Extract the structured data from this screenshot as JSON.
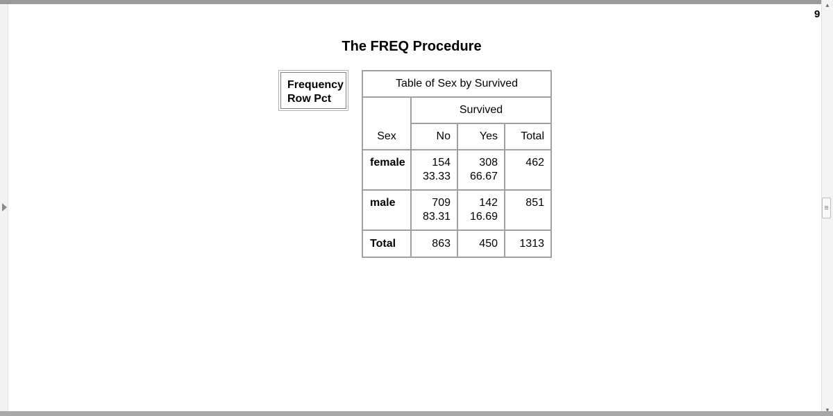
{
  "page_number": "9",
  "procedure_title": "The FREQ Procedure",
  "key": {
    "line1": "Frequency",
    "line2": "Row Pct"
  },
  "table": {
    "title": "Table of Sex by Survived",
    "row_variable": "Sex",
    "column_variable": "Survived",
    "column_headers": [
      "No",
      "Yes",
      "Total"
    ],
    "rows": [
      {
        "label": "female",
        "cells": [
          {
            "freq": "154",
            "row_pct": "33.33"
          },
          {
            "freq": "308",
            "row_pct": "66.67"
          },
          {
            "freq": "462",
            "row_pct": ""
          }
        ]
      },
      {
        "label": "male",
        "cells": [
          {
            "freq": "709",
            "row_pct": "83.31"
          },
          {
            "freq": "142",
            "row_pct": "16.69"
          },
          {
            "freq": "851",
            "row_pct": ""
          }
        ]
      }
    ],
    "total_row": {
      "label": "Total",
      "cells": [
        "863",
        "450",
        "1313"
      ]
    }
  },
  "colors": {
    "border": "#a0a0a0",
    "top_bar": "#9a9a9a",
    "bottom_bar": "#a8a8a8"
  }
}
